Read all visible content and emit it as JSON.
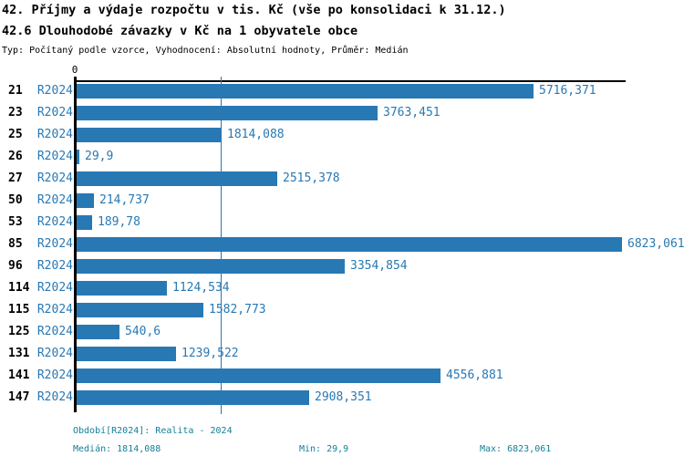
{
  "header": {
    "title": "42. Příjmy a výdaje rozpočtu v tis. Kč (vše po konsolidaci k 31.12.)",
    "subtitle": "42.6 Dlouhodobé závazky v Kč na 1 obyvatele obce",
    "type_line": "Typ: Počítaný podle vzorce, Vyhodnocení: Absolutní hodnoty, Průměr: Medián"
  },
  "chart_data": {
    "type": "bar",
    "orientation": "horizontal",
    "title": "42.6 Dlouhodobé závazky v Kč na 1 obyvatele obce",
    "series_label": "R2024",
    "categories": [
      "21",
      "23",
      "25",
      "26",
      "27",
      "50",
      "53",
      "85",
      "96",
      "114",
      "115",
      "125",
      "131",
      "141",
      "147"
    ],
    "values": [
      5716.371,
      3763.451,
      1814.088,
      29.9,
      2515.378,
      214.737,
      189.78,
      6823.061,
      3354.854,
      1124.534,
      1582.773,
      540.6,
      1239.522,
      4556.881,
      2908.351
    ],
    "value_labels": [
      "5716,371",
      "3763,451",
      "1814,088",
      "29,9",
      "2515,378",
      "214,737",
      "189,78",
      "6823,061",
      "3354,854",
      "1124,534",
      "1582,773",
      "540,6",
      "1239,522",
      "4556,881",
      "2908,351"
    ],
    "axis_zero_label": "0",
    "xlim": [
      0,
      6823.061
    ],
    "median": 1814.088,
    "grid": false,
    "legend": "none",
    "bar_color": "#2878b4",
    "median_line_color": "#2878b4"
  },
  "footer": {
    "period_line": "Období[R2024]: Realita - 2024",
    "median_label": "Medián: 1814,088",
    "min_label": "Min: 29,9",
    "max_label": "Max: 6823,061"
  },
  "colors": {
    "bar": "#2878b4",
    "value_text": "#2878b4",
    "footer_text": "#148099",
    "title_text": "#000000",
    "axis": "#000000"
  }
}
